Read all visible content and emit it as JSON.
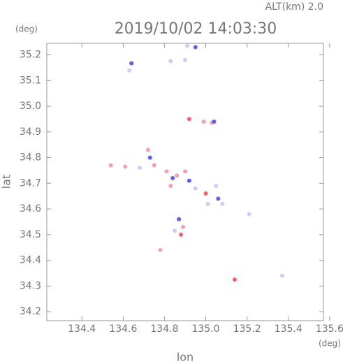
{
  "chart_data": {
    "type": "scatter",
    "title": "2019/10/02 14:03:30",
    "subtitle": "ALT(km)  2.0",
    "x_label": "lon",
    "x_unit": "(deg)",
    "y_label": "lat",
    "y_unit": "(deg)",
    "xlim": [
      134.23,
      135.57
    ],
    "ylim": [
      34.165,
      35.245
    ],
    "xticks": [
      134.4,
      134.6,
      134.8,
      {
        "value": 135.0,
        "label": "135.0"
      },
      135.2,
      135.4,
      135.6
    ],
    "yticks": [
      34.2,
      34.3,
      34.4,
      34.5,
      34.6,
      34.7,
      34.8,
      34.9,
      {
        "value": 35.0,
        "label": "35.0"
      },
      35.1,
      35.2
    ],
    "series": [
      {
        "color": "#c8d0f4",
        "x": [
          134.91,
          134.9,
          134.63,
          134.83,
          135.01,
          135.08,
          135.05,
          135.21,
          135.37,
          134.85,
          134.68,
          134.95
        ],
        "y": [
          35.235,
          35.18,
          35.14,
          35.176,
          34.62,
          34.62,
          34.69,
          34.58,
          34.34,
          34.515,
          34.76,
          34.68
        ]
      },
      {
        "color": "#f2a0b4",
        "x": [
          134.72,
          134.75,
          134.54,
          134.61,
          134.81,
          134.86,
          134.9,
          134.83,
          134.89,
          134.78,
          134.99,
          135.03
        ],
        "y": [
          34.83,
          34.77,
          34.77,
          34.765,
          34.746,
          34.73,
          34.746,
          34.69,
          34.53,
          34.44,
          34.94,
          34.936
        ]
      },
      {
        "color": "#6060e0",
        "x": [
          134.64,
          134.73,
          134.84,
          134.92,
          135.06,
          134.87,
          134.95,
          135.04
        ],
        "y": [
          35.167,
          34.8,
          34.72,
          34.71,
          34.64,
          34.56,
          35.23,
          34.94
        ]
      },
      {
        "color": "#f06070",
        "x": [
          134.92,
          135.0,
          135.14,
          134.88
        ],
        "y": [
          34.95,
          34.66,
          34.325,
          34.5
        ]
      }
    ]
  }
}
